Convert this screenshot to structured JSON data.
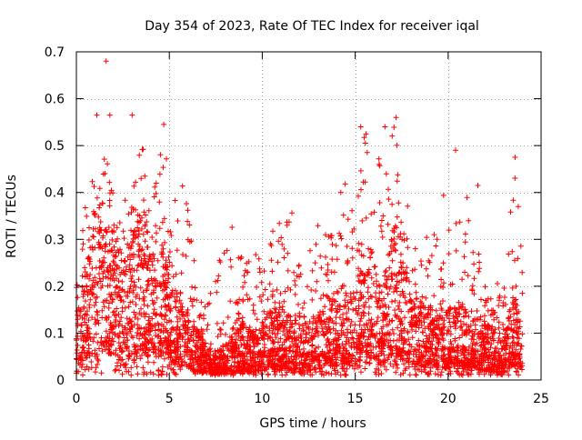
{
  "chart_data": {
    "type": "scatter",
    "title": "Day 354 of 2023, Rate Of TEC Index for receiver iqal",
    "xlabel": "GPS time / hours",
    "ylabel": "ROTI / TECUs",
    "xlim": [
      0,
      25
    ],
    "ylim": [
      0,
      0.7
    ],
    "xticks": [
      0,
      5,
      10,
      15,
      20,
      25
    ],
    "yticks": [
      0,
      0.1,
      0.2,
      0.3,
      0.4,
      0.5,
      0.6,
      0.7
    ],
    "xtick_labels": [
      "0",
      "5",
      "10",
      "15",
      "20",
      "25"
    ],
    "ytick_labels": [
      "0",
      "0.1",
      "0.2",
      "0.3",
      "0.4",
      "0.5",
      "0.6",
      "0.7"
    ],
    "grid": true,
    "marker": "+",
    "marker_color": "#ff0000",
    "data_span_hours": [
      0,
      24
    ],
    "density_profile": {
      "hours": [
        0,
        0.5,
        1,
        1.5,
        2,
        2.5,
        3,
        3.5,
        4,
        4.5,
        5,
        5.5,
        6,
        6.5,
        7,
        7.5,
        8,
        8.5,
        9,
        9.5,
        10,
        10.5,
        11,
        11.5,
        12,
        12.5,
        13,
        13.5,
        14,
        14.5,
        15,
        15.5,
        16,
        16.5,
        17,
        17.5,
        18,
        18.5,
        19,
        19.5,
        20,
        20.5,
        21,
        21.5,
        22,
        22.5,
        23,
        23.5,
        24
      ],
      "typical_roti": [
        0.1,
        0.17,
        0.22,
        0.25,
        0.2,
        0.16,
        0.2,
        0.24,
        0.18,
        0.2,
        0.15,
        0.12,
        0.1,
        0.07,
        0.05,
        0.04,
        0.05,
        0.07,
        0.08,
        0.07,
        0.08,
        0.1,
        0.1,
        0.09,
        0.08,
        0.08,
        0.09,
        0.1,
        0.13,
        0.13,
        0.12,
        0.2,
        0.17,
        0.13,
        0.22,
        0.2,
        0.12,
        0.11,
        0.1,
        0.09,
        0.1,
        0.11,
        0.1,
        0.09,
        0.08,
        0.07,
        0.06,
        0.12,
        0.07
      ],
      "upper_envelope": [
        0.2,
        0.4,
        0.47,
        0.54,
        0.42,
        0.4,
        0.42,
        0.52,
        0.38,
        0.54,
        0.45,
        0.44,
        0.39,
        0.2,
        0.15,
        0.24,
        0.32,
        0.33,
        0.26,
        0.27,
        0.31,
        0.32,
        0.42,
        0.37,
        0.3,
        0.3,
        0.33,
        0.31,
        0.45,
        0.42,
        0.35,
        0.53,
        0.53,
        0.46,
        0.56,
        0.46,
        0.32,
        0.3,
        0.33,
        0.3,
        0.49,
        0.32,
        0.41,
        0.3,
        0.22,
        0.22,
        0.2,
        0.47,
        0.3
      ]
    },
    "notable_points": [
      {
        "x": 1.6,
        "y": 0.68
      },
      {
        "x": 1.1,
        "y": 0.565
      },
      {
        "x": 1.8,
        "y": 0.565
      },
      {
        "x": 3.0,
        "y": 0.565
      },
      {
        "x": 4.7,
        "y": 0.545
      },
      {
        "x": 15.3,
        "y": 0.54
      },
      {
        "x": 16.6,
        "y": 0.54
      },
      {
        "x": 17.2,
        "y": 0.56
      },
      {
        "x": 20.4,
        "y": 0.49
      },
      {
        "x": 21.6,
        "y": 0.415
      },
      {
        "x": 23.6,
        "y": 0.475
      }
    ]
  }
}
